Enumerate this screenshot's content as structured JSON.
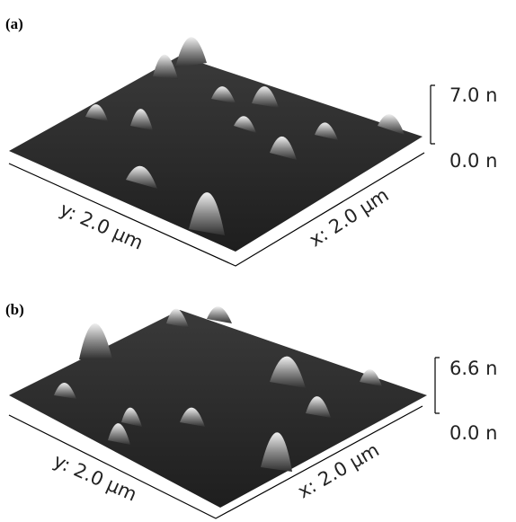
{
  "panels": [
    {
      "label": "(a)",
      "z_max": "7.0 n",
      "z_min": "0.0 n",
      "x_label": "x: 2.0 µm",
      "y_label": "y: 2.0 µm"
    },
    {
      "label": "(b)",
      "z_max": "6.6 n",
      "z_min": "0.0 n",
      "x_label": "x: 2.0 µm",
      "y_label": "y: 2.0 µm"
    }
  ]
}
